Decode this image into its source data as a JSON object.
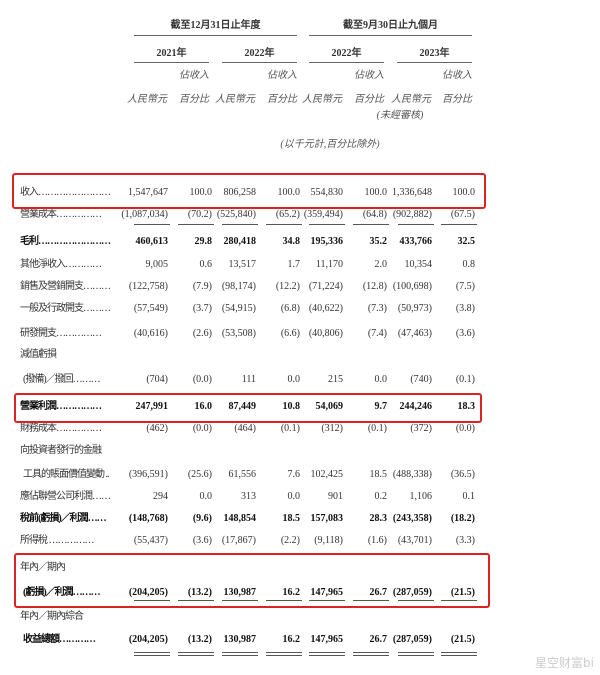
{
  "header": {
    "group1": "截至12月31日止年度",
    "group2": "截至9月30日止九個月",
    "years": [
      "2021年",
      "2022年",
      "2022年",
      "2023年"
    ],
    "col_rmb": "人民幣元",
    "col_pct_top": "佔收入",
    "col_pct_bottom": "百分比",
    "unaudited": "(未經審核)",
    "unit_note": "(以千元計,百分比除外)"
  },
  "rows": [
    {
      "label": "收入……………………",
      "values": [
        "1,547,647",
        "100.0",
        "806,258",
        "100.0",
        "554,830",
        "100.0",
        "1,336,648",
        "100.0"
      ]
    },
    {
      "label": "營業成本……………",
      "values": [
        "(1,087,034)",
        "(70.2)",
        "(525,840)",
        "(65.2)",
        "(359,494)",
        "(64.8)",
        "(902,882)",
        "(67.5)"
      ]
    },
    {
      "label": "毛利……………………",
      "values": [
        "460,613",
        "29.8",
        "280,418",
        "34.8",
        "195,336",
        "35.2",
        "433,766",
        "32.5"
      ],
      "bold": true
    },
    {
      "label": "其他淨收入…………",
      "values": [
        "9,005",
        "0.6",
        "13,517",
        "1.7",
        "11,170",
        "2.0",
        "10,354",
        "0.8"
      ]
    },
    {
      "label": "銷售及營銷開支………",
      "values": [
        "(122,758)",
        "(7.9)",
        "(98,174)",
        "(12.2)",
        "(71,224)",
        "(12.8)",
        "(100,698)",
        "(7.5)"
      ]
    },
    {
      "label": "一般及行政開支………",
      "values": [
        "(57,549)",
        "(3.7)",
        "(54,915)",
        "(6.8)",
        "(40,622)",
        "(7.3)",
        "(50,973)",
        "(3.8)"
      ]
    },
    {
      "label": "研發開支……………",
      "values": [
        "(40,616)",
        "(2.6)",
        "(53,508)",
        "(6.6)",
        "(40,806)",
        "(7.4)",
        "(47,463)",
        "(3.6)"
      ]
    },
    {
      "label": "減值虧損",
      "values": []
    },
    {
      "label": "  (撥備)／撥回………",
      "values": [
        "(704)",
        "(0.0)",
        "111",
        "0.0",
        "215",
        "0.0",
        "(740)",
        "(0.1)"
      ]
    },
    {
      "label": "營業利潤……………",
      "values": [
        "247,991",
        "16.0",
        "87,449",
        "10.8",
        "54,069",
        "9.7",
        "244,246",
        "18.3"
      ],
      "bold": true
    },
    {
      "label": "財務成本……………",
      "values": [
        "(462)",
        "(0.0)",
        "(464)",
        "(0.1)",
        "(312)",
        "(0.1)",
        "(372)",
        "(0.0)"
      ]
    },
    {
      "label": "向投資者發行的金融",
      "values": []
    },
    {
      "label": "  工具的賬面價值變動 ..",
      "values": [
        "(396,591)",
        "(25.6)",
        "61,556",
        "7.6",
        "102,425",
        "18.5",
        "(488,338)",
        "(36.5)"
      ]
    },
    {
      "label": "應佔聯營公司利潤……",
      "values": [
        "294",
        "0.0",
        "313",
        "0.0",
        "901",
        "0.2",
        "1,106",
        "0.1"
      ]
    },
    {
      "label": "稅前(虧損)／利潤……",
      "values": [
        "(148,768)",
        "(9.6)",
        "148,854",
        "18.5",
        "157,083",
        "28.3",
        "(243,358)",
        "(18.2)"
      ],
      "bold": true
    },
    {
      "label": "所得稅 ……………",
      "values": [
        "(55,437)",
        "(3.6)",
        "(17,867)",
        "(2.2)",
        "(9,118)",
        "(1.6)",
        "(43,701)",
        "(3.3)"
      ]
    },
    {
      "label": "年內／期內",
      "values": []
    },
    {
      "label": "  (虧損)／利潤………",
      "values": [
        "(204,205)",
        "(13.2)",
        "130,987",
        "16.2",
        "147,965",
        "26.7",
        "(287,059)",
        "(21.5)"
      ],
      "bold": true
    },
    {
      "label": "年內／期內綜合",
      "values": []
    },
    {
      "label": "  收益總額…………",
      "values": [
        "(204,205)",
        "(13.2)",
        "130,987",
        "16.2",
        "147,965",
        "26.7",
        "(287,059)",
        "(21.5)"
      ],
      "bold": true
    }
  ],
  "highlight_color": "#dd2222",
  "watermark": "星空财富bi"
}
